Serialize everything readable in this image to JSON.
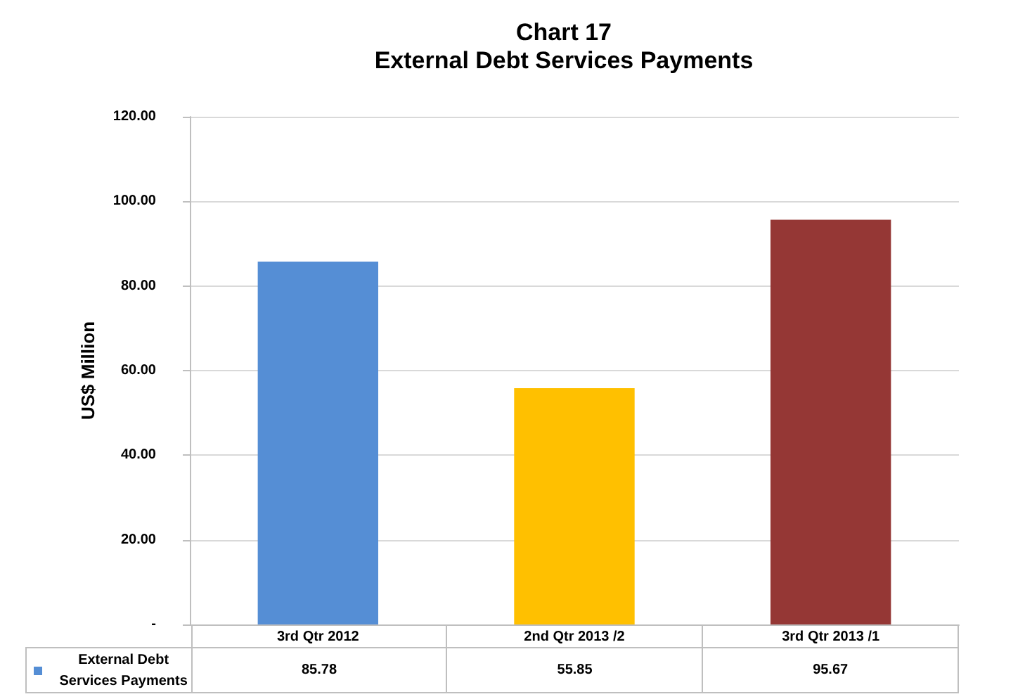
{
  "chart_data": {
    "type": "bar",
    "title": "Chart 17\nExternal Debt Services Payments",
    "ylabel": "US$ Million",
    "categories": [
      "3rd Qtr 2012",
      "2nd Qtr 2013 /2",
      "3rd Qtr 2013 /1"
    ],
    "series": [
      {
        "name": "External Debt Services Payments",
        "color": "#558ed5",
        "colors": [
          "#558ed5",
          "#ffc000",
          "#953735"
        ],
        "values": [
          85.78,
          55.85,
          95.67
        ]
      }
    ],
    "ylim": [
      0,
      120
    ],
    "yticks": [
      {
        "value": 0,
        "label": "-"
      },
      {
        "value": 20,
        "label": "20.00"
      },
      {
        "value": 40,
        "label": "40.00"
      },
      {
        "value": 60,
        "label": "60.00"
      },
      {
        "value": 80,
        "label": "80.00"
      },
      {
        "value": 100,
        "label": "100.00"
      },
      {
        "value": 120,
        "label": "120.00"
      }
    ],
    "grid": "y",
    "legend": "bottom",
    "data_labels": true
  }
}
